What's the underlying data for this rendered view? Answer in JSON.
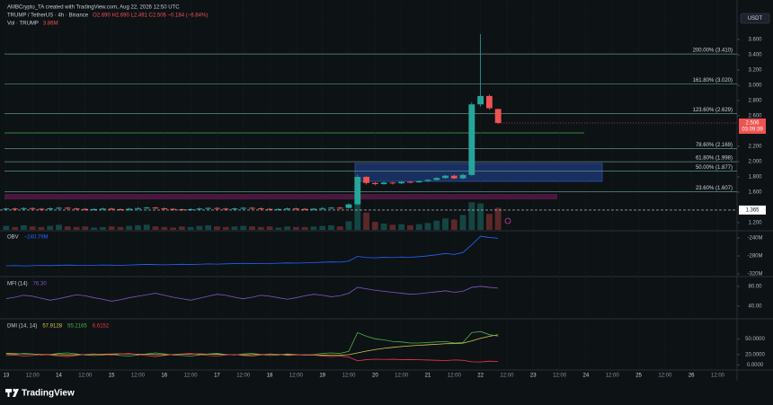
{
  "header": {
    "credit": "AMBCrypto_TA created with TradingView.com, Aug 22, 2026 12:50 UTC",
    "currency": "USDT",
    "logo": "TradingView"
  },
  "chart_data": [
    {
      "type": "candlestick",
      "title": "TRUMP / TetherUS · 4h · Binance",
      "legend": "O2.690 H2.690 L2.491 C2.506 −0.184 (−6.84%)",
      "volume_title": "Vol · TRUMP",
      "volume_label": "3.86M",
      "up_color": "#26a69a",
      "down_color": "#ef5350",
      "categories": [
        null,
        null,
        null,
        null,
        null,
        null,
        null,
        null,
        null,
        null,
        null,
        null,
        null,
        null,
        null,
        null,
        null,
        null,
        null,
        null,
        null,
        null,
        null,
        null,
        null,
        null,
        null,
        null,
        null,
        null,
        null,
        null,
        null,
        null,
        null,
        null,
        null,
        null,
        null,
        null,
        null,
        null,
        null,
        null,
        null,
        null,
        null,
        null,
        null,
        null,
        null,
        null,
        null,
        null,
        null,
        null,
        null
      ],
      "open": [
        1.38,
        1.385,
        1.378,
        1.39,
        1.382,
        1.375,
        1.388,
        1.395,
        1.386,
        1.38,
        1.372,
        1.378,
        1.384,
        1.376,
        1.37,
        1.382,
        1.39,
        1.398,
        1.388,
        1.38,
        1.374,
        1.368,
        1.376,
        1.385,
        1.392,
        1.384,
        1.378,
        1.386,
        1.394,
        1.388,
        1.38,
        1.372,
        1.378,
        1.386,
        1.38,
        1.374,
        1.382,
        1.39,
        1.396,
        1.392,
        1.44,
        1.8,
        1.72,
        1.705,
        1.725,
        1.715,
        1.735,
        1.728,
        1.745,
        1.76,
        1.785,
        1.815,
        1.78,
        1.825,
        2.75,
        2.86,
        2.69
      ],
      "high": [
        1.397,
        1.397,
        1.402,
        1.402,
        1.394,
        1.4,
        1.407,
        1.407,
        1.398,
        1.392,
        1.39,
        1.396,
        1.396,
        1.388,
        1.394,
        1.402,
        1.41,
        1.41,
        1.4,
        1.392,
        1.386,
        1.388,
        1.397,
        1.404,
        1.404,
        1.396,
        1.398,
        1.406,
        1.406,
        1.4,
        1.392,
        1.39,
        1.398,
        1.398,
        1.392,
        1.394,
        1.402,
        1.408,
        1.408,
        1.45,
        1.83,
        1.81,
        1.735,
        1.74,
        1.735,
        1.745,
        1.745,
        1.755,
        1.77,
        1.795,
        1.825,
        1.83,
        1.84,
        2.78,
        3.67,
        2.88,
        2.69
      ],
      "low": [
        1.368,
        1.366,
        1.366,
        1.37,
        1.363,
        1.363,
        1.376,
        1.374,
        1.368,
        1.36,
        1.36,
        1.366,
        1.364,
        1.358,
        1.358,
        1.37,
        1.378,
        1.376,
        1.368,
        1.362,
        1.356,
        1.356,
        1.364,
        1.373,
        1.372,
        1.366,
        1.366,
        1.374,
        1.376,
        1.368,
        1.36,
        1.36,
        1.366,
        1.368,
        1.362,
        1.362,
        1.37,
        1.378,
        1.38,
        1.385,
        1.43,
        1.7,
        1.69,
        1.695,
        1.7,
        1.705,
        1.715,
        1.72,
        1.735,
        1.75,
        1.775,
        1.77,
        1.77,
        1.815,
        2.72,
        2.68,
        2.491
      ],
      "close": [
        1.385,
        1.378,
        1.39,
        1.382,
        1.375,
        1.388,
        1.395,
        1.386,
        1.38,
        1.372,
        1.378,
        1.384,
        1.376,
        1.37,
        1.382,
        1.39,
        1.398,
        1.388,
        1.38,
        1.374,
        1.368,
        1.376,
        1.385,
        1.392,
        1.384,
        1.378,
        1.386,
        1.394,
        1.388,
        1.38,
        1.372,
        1.378,
        1.386,
        1.38,
        1.374,
        1.382,
        1.39,
        1.396,
        1.392,
        1.44,
        1.8,
        1.72,
        1.705,
        1.725,
        1.715,
        1.735,
        1.728,
        1.745,
        1.76,
        1.785,
        1.815,
        1.78,
        1.825,
        2.75,
        2.86,
        2.7,
        2.506
      ],
      "volume": [
        0.7,
        0.5,
        0.8,
        0.6,
        0.5,
        0.7,
        0.9,
        0.6,
        0.5,
        0.6,
        0.4,
        0.5,
        0.6,
        0.5,
        0.7,
        0.8,
        0.9,
        0.6,
        0.5,
        0.4,
        0.6,
        0.5,
        0.7,
        0.8,
        0.6,
        0.5,
        0.6,
        0.7,
        0.6,
        0.5,
        0.6,
        0.4,
        0.6,
        0.5,
        0.5,
        0.6,
        0.7,
        0.8,
        0.6,
        1.5,
        5.2,
        3.0,
        1.4,
        1.1,
        0.9,
        1.0,
        0.8,
        1.0,
        1.2,
        1.6,
        2.0,
        1.8,
        2.6,
        4.8,
        4.6,
        2.8,
        3.86
      ],
      "xlim": [
        -0.7,
        83.2
      ],
      "xticks": [
        {
          "value": 0,
          "label": "13"
        },
        {
          "value": 3,
          "label": "12:00"
        },
        {
          "value": 6,
          "label": "14"
        },
        {
          "value": 9,
          "label": "12:00"
        },
        {
          "value": 12,
          "label": "15"
        },
        {
          "value": 15,
          "label": "12:00"
        },
        {
          "value": 18,
          "label": "16"
        },
        {
          "value": 21,
          "label": "12:00"
        },
        {
          "value": 24,
          "label": "17"
        },
        {
          "value": 27,
          "label": "12:00"
        },
        {
          "value": 30,
          "label": "18"
        },
        {
          "value": 33,
          "label": "12:00"
        },
        {
          "value": 36,
          "label": "19"
        },
        {
          "value": 39,
          "label": "12:00"
        },
        {
          "value": 42,
          "label": "20"
        },
        {
          "value": 45,
          "label": "12:00"
        },
        {
          "value": 48,
          "label": "21"
        },
        {
          "value": 51,
          "label": "12:00"
        },
        {
          "value": 54,
          "label": "22"
        },
        {
          "value": 57,
          "label": "12:00"
        },
        {
          "value": 60,
          "label": "23"
        },
        {
          "value": 63,
          "label": "12:00"
        },
        {
          "value": 66,
          "label": "24"
        },
        {
          "value": 69,
          "label": "12:00"
        },
        {
          "value": 72,
          "label": "25"
        },
        {
          "value": 75,
          "label": "12:00"
        },
        {
          "value": 78,
          "label": "26"
        },
        {
          "value": 81,
          "label": "12:00"
        }
      ],
      "ylim": [
        1.105,
        4.118
      ],
      "yticks": [
        {
          "value": 3.6,
          "label": "3.600"
        },
        {
          "value": 3.4,
          "label": "3.400"
        },
        {
          "value": 3.2,
          "label": "3.200"
        },
        {
          "value": 3.0,
          "label": "3.000"
        },
        {
          "value": 2.8,
          "label": "2.800"
        },
        {
          "value": 2.6,
          "label": "2.600"
        },
        {
          "value": 2.2,
          "label": "2.200"
        },
        {
          "value": 2.0,
          "label": "2.000"
        },
        {
          "value": 1.8,
          "label": "1.800"
        },
        {
          "value": 1.6,
          "label": "1.600"
        },
        {
          "value": 1.2,
          "label": "1.200"
        }
      ],
      "y2lim": [
        0,
        40
      ],
      "fib_levels": [
        {
          "value": 3.41,
          "label": "200.00% (3.410)"
        },
        {
          "value": 3.02,
          "label": "161.80% (3.020)"
        },
        {
          "value": 2.629,
          "label": "123.60% (2.629)"
        },
        {
          "value": 2.169,
          "label": "78.60% (2.169)"
        },
        {
          "value": 1.998,
          "label": "61.80% (1.998)"
        },
        {
          "value": 1.877,
          "label": "50.00% (1.877)"
        },
        {
          "value": 1.607,
          "label": "23.60% (1.607)"
        }
      ],
      "fib_color": "#5f8f8b",
      "level_marker": {
        "value": 1.365,
        "label": "1.365"
      },
      "last_price": {
        "value": 2.506,
        "label": "2.506",
        "countdown": "03:09:39"
      }
    },
    {
      "type": "line",
      "title": "OBV",
      "ylim": [
        -322,
        -226
      ],
      "yticks": [
        {
          "value": -240,
          "label": "-240M"
        },
        {
          "value": -280,
          "label": "-280M"
        },
        {
          "value": -320,
          "label": "-320M"
        }
      ],
      "series": [
        {
          "color": "#2962ff",
          "value_label": "−240.79M",
          "values": [
            -302,
            -301.5,
            -302.2,
            -301.8,
            -301.2,
            -301.6,
            -300.9,
            -300.4,
            -300.8,
            -301.3,
            -300.7,
            -300.2,
            -300.6,
            -301,
            -300.3,
            -299.6,
            -298.9,
            -299.4,
            -299.8,
            -299.2,
            -298.6,
            -299.1,
            -298.5,
            -297.8,
            -298.2,
            -297.6,
            -297.1,
            -296.5,
            -296.9,
            -297.3,
            -296.8,
            -296.2,
            -295.6,
            -296,
            -295.5,
            -294.8,
            -294.1,
            -293.4,
            -293.8,
            -291.5,
            -281,
            -283.5,
            -284.2,
            -283.1,
            -283.8,
            -282.5,
            -283,
            -281.6,
            -279.9,
            -277.4,
            -274.6,
            -276.8,
            -272.4,
            -255.1,
            -236.2,
            -238.9,
            -240.79
          ]
        }
      ]
    },
    {
      "type": "line",
      "title": "MFI (14)",
      "ylim": [
        20,
        96
      ],
      "yticks": [
        {
          "value": 80,
          "label": "80.00"
        },
        {
          "value": 40,
          "label": "40.00"
        }
      ],
      "series": [
        {
          "color": "#7e57c2",
          "value_label": "76.30",
          "values": [
            55,
            58,
            62,
            60,
            56,
            52,
            55,
            59,
            63,
            61,
            57,
            54,
            50,
            53,
            57,
            60,
            63,
            66,
            62,
            58,
            55,
            52,
            56,
            60,
            64,
            62,
            58,
            55,
            58,
            62,
            60,
            57,
            54,
            57,
            61,
            64,
            62,
            59,
            61,
            66,
            78,
            75,
            72,
            70,
            68,
            66,
            64,
            65,
            67,
            69,
            71,
            68,
            70,
            78,
            80,
            78,
            76.3
          ]
        }
      ]
    },
    {
      "type": "line",
      "title": "DMI (14, 14)",
      "ylim": [
        -8,
        85
      ],
      "yticks": [
        {
          "value": 50,
          "label": "50.0000"
        },
        {
          "value": 20,
          "label": "20.0000"
        },
        {
          "value": 0,
          "label": "0.0000"
        }
      ],
      "series": [
        {
          "color": "#d4c84a",
          "values": [
            22,
            21.5,
            21,
            20.6,
            20.2,
            19.9,
            19.5,
            19.2,
            19.5,
            19.9,
            20.3,
            20.6,
            20.9,
            21.3,
            21,
            20.6,
            20.2,
            19.8,
            19.5,
            19.9,
            20.4,
            20.8,
            21.1,
            20.7,
            20.3,
            19.9,
            19.5,
            19.2,
            19.6,
            20,
            20.4,
            20.1,
            19.7,
            19.3,
            19,
            18.8,
            18.6,
            18.5,
            18.7,
            19.5,
            23,
            26.5,
            29.4,
            31.8,
            33.7,
            35.3,
            36.5,
            37.6,
            38.6,
            39.6,
            40.6,
            41,
            41.8,
            46,
            51,
            54.8,
            57.9128
          ]
        },
        {
          "color": "#4caf50",
          "values": [
            21,
            20,
            22,
            21,
            19,
            20,
            22,
            23,
            21,
            19,
            18,
            19,
            20,
            18,
            17,
            19,
            21,
            23,
            21,
            19,
            18,
            17,
            19,
            21,
            22,
            20,
            19,
            21,
            22,
            20,
            18,
            19,
            21,
            20,
            19,
            20,
            22,
            23,
            22,
            26,
            62,
            55,
            50,
            48,
            45,
            44,
            42,
            42,
            43,
            44,
            45,
            42,
            43,
            62,
            64,
            58,
            55.2165
          ]
        },
        {
          "color": "#f23645",
          "values": [
            18,
            19,
            17,
            18,
            20,
            19,
            17,
            16,
            18,
            20,
            21,
            20,
            19,
            21,
            22,
            20,
            18,
            16,
            18,
            20,
            21,
            22,
            20,
            18,
            17,
            19,
            20,
            18,
            17,
            19,
            21,
            20,
            18,
            19,
            20,
            19,
            17,
            16,
            17,
            15,
            8,
            10,
            11,
            10.5,
            10.8,
            10.2,
            10.4,
            9.8,
            9.3,
            8.9,
            8.4,
            9.5,
            8.8,
            6,
            5.5,
            7.2,
            6.6152
          ]
        }
      ]
    }
  ]
}
